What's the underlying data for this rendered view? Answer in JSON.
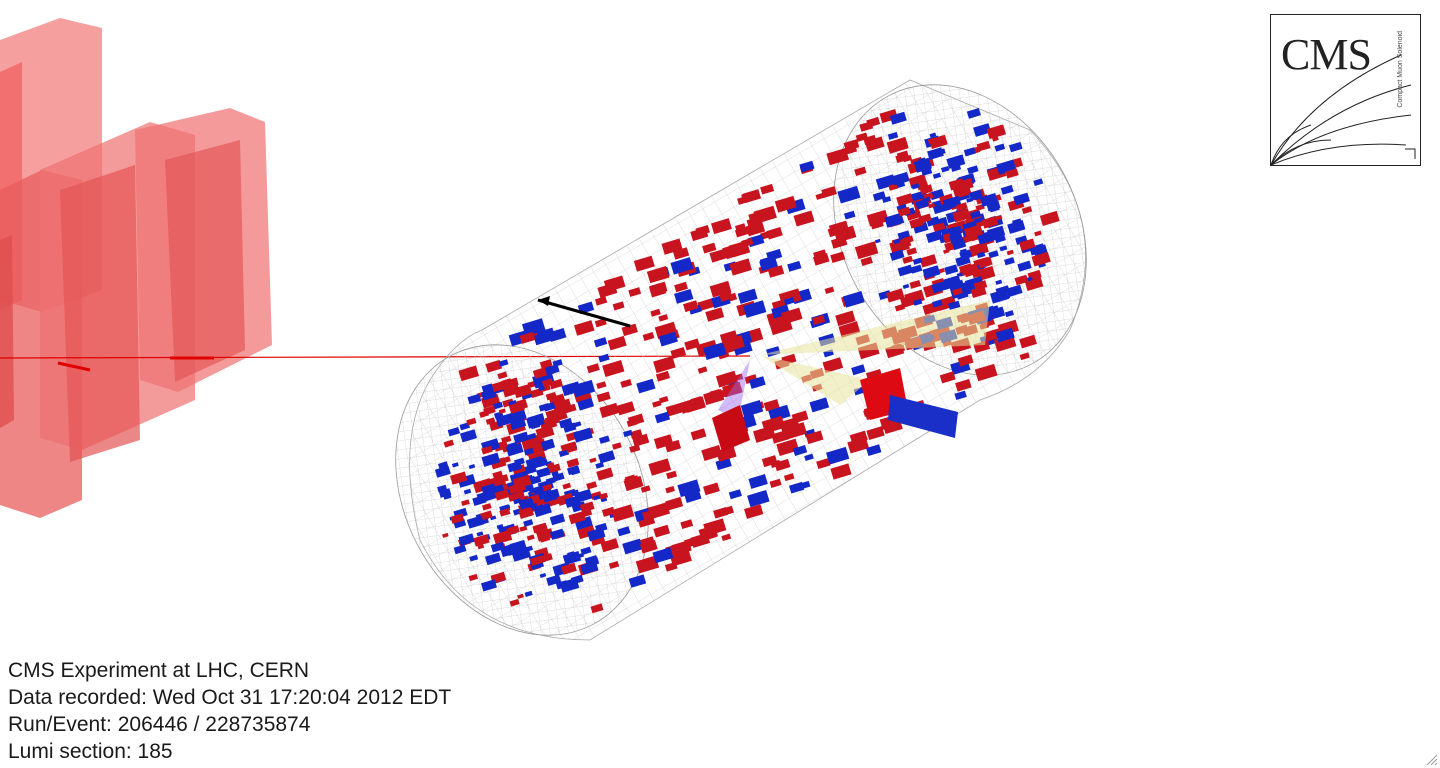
{
  "event_info": {
    "experiment": "CMS Experiment at LHC, CERN",
    "recorded": "Data recorded: Wed Oct 31 17:20:04 2012 EDT",
    "run_event": "Run/Event: 206446 / 228735874",
    "lumi": "Lumi section: 185"
  },
  "logo": {
    "text": "CMS",
    "subtext": "Compact Muon Solenoid"
  },
  "colors": {
    "ecal_barrel": "#c8141e",
    "hcal": "#1428c8",
    "muon_chambers": "#e61e1e",
    "track": "#e60000",
    "jet_cone": "#e8e4a0",
    "mesh": "#b8b8b8"
  },
  "icons": {
    "resize": "resize-grip-icon"
  }
}
